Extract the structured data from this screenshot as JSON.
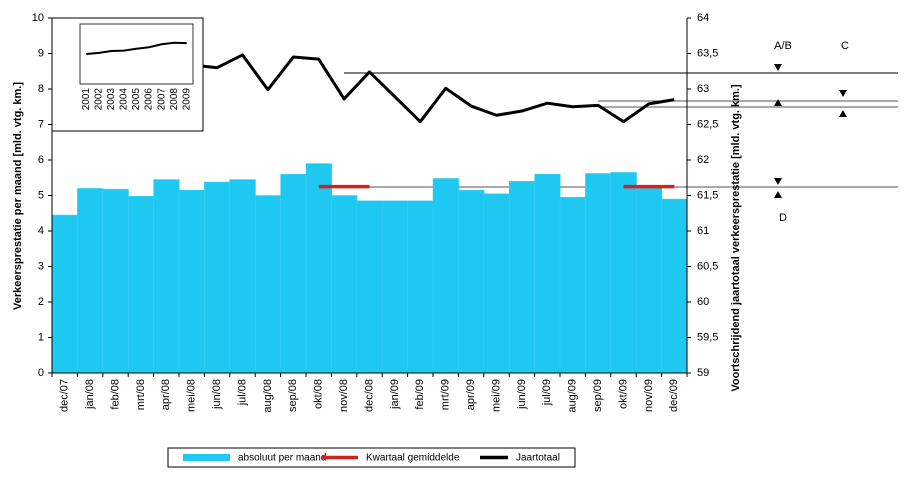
{
  "chart_data": [
    {
      "type": "bar",
      "ylabel": "Verkeersprestatie per maand [mld. vtg. km.]",
      "y2label": "Voortschrijdend jaartotaal verkeersprestatie [mld. vtg. km.]",
      "categories": [
        "dec/07",
        "jan/08",
        "feb/08",
        "mrt/08",
        "apr/08",
        "mei/08",
        "jun/08",
        "jul/08",
        "aug/08",
        "sep/08",
        "okt/08",
        "nov/08",
        "dec/08",
        "jan/09",
        "feb/09",
        "mrt/09",
        "apr/09",
        "mei/09",
        "jun/09",
        "jul/09",
        "aug/09",
        "sep/09",
        "okt/09",
        "nov/09",
        "dec/09"
      ],
      "series": [
        {
          "name": "absoluut per maand",
          "type": "bar",
          "color": "#1ec8f0",
          "axis": "y",
          "values": [
            4.45,
            5.2,
            5.18,
            4.98,
            5.45,
            5.15,
            5.38,
            5.45,
            5.0,
            5.6,
            5.9,
            5.0,
            4.85,
            4.85,
            4.85,
            5.48,
            5.15,
            5.05,
            5.4,
            5.6,
            4.95,
            5.62,
            5.65,
            5.25,
            4.9
          ]
        },
        {
          "name": "Kwartaal gemiddelde",
          "type": "line",
          "color": "#d42020",
          "axis": "y",
          "values": [
            null,
            null,
            null,
            null,
            null,
            null,
            null,
            null,
            null,
            null,
            5.25,
            5.25,
            5.25,
            null,
            null,
            null,
            null,
            null,
            null,
            null,
            null,
            null,
            5.25,
            5.25,
            5.25
          ]
        },
        {
          "name": "Jaartotaal",
          "type": "line",
          "color": "#000000",
          "axis": "y2",
          "values": [
            63.2,
            63.25,
            63.3,
            63.3,
            63.35,
            63.34,
            63.3,
            63.48,
            62.99,
            63.45,
            63.42,
            62.86,
            63.24,
            62.89,
            62.54,
            63.01,
            62.76,
            62.63,
            62.69,
            62.8,
            62.75,
            62.77,
            62.54,
            62.79,
            62.85
          ]
        }
      ],
      "annotations": [
        "A/B",
        "C",
        "D"
      ],
      "ylim": [
        0,
        10
      ],
      "yticks": [
        0,
        1,
        2,
        3,
        4,
        5,
        6,
        7,
        8,
        9,
        10
      ],
      "y2lim": [
        59,
        64
      ],
      "y2ticks": [
        59,
        {
          "value": 59.5,
          "label": "59,5"
        },
        60,
        {
          "value": 60.5,
          "label": "60,5"
        },
        61,
        {
          "value": 61.5,
          "label": "61,5"
        },
        62,
        {
          "value": 62.5,
          "label": "62,5"
        },
        63,
        {
          "value": 63.5,
          "label": "63,5"
        },
        64
      ],
      "legend": "bottom"
    },
    {
      "type": "line",
      "categories": [
        "2001",
        "2002",
        "2003",
        "2004",
        "2005",
        "2006",
        "2007",
        "2008",
        "2009"
      ],
      "values": [
        60.0,
        60.3,
        60.8,
        60.9,
        61.4,
        61.8,
        62.6,
        63.0,
        62.9
      ],
      "color": "#000000",
      "ylim": [
        52,
        68
      ]
    }
  ]
}
